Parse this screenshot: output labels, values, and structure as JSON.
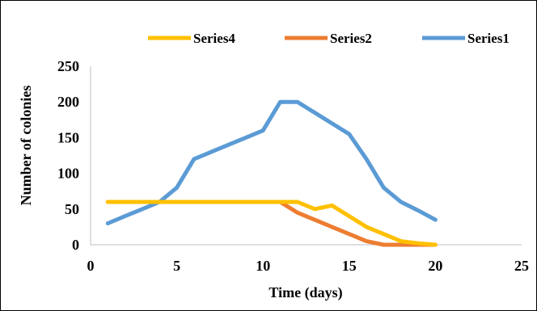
{
  "chart_data": {
    "type": "line",
    "title": "",
    "xlabel": "Time  (days)",
    "ylabel": "Number of colonies",
    "xlim": [
      0,
      25
    ],
    "ylim": [
      0,
      250
    ],
    "xticks": [
      "0",
      "5",
      "10",
      "15",
      "20",
      "25"
    ],
    "yticks": [
      "0",
      "50",
      "100",
      "150",
      "200",
      "250"
    ],
    "grid": false,
    "legend_position": "top",
    "legend_order": [
      "Series4",
      "Series2",
      "Series1"
    ],
    "series": [
      {
        "name": "Series4",
        "color": "#FFC000",
        "points": [
          [
            1,
            60
          ],
          [
            2,
            60
          ],
          [
            3,
            60
          ],
          [
            4,
            60
          ],
          [
            5,
            60
          ],
          [
            6,
            60
          ],
          [
            7,
            60
          ],
          [
            8,
            60
          ],
          [
            9,
            60
          ],
          [
            10,
            60
          ],
          [
            11,
            60
          ],
          [
            12,
            60
          ],
          [
            13,
            50
          ],
          [
            14,
            55
          ],
          [
            15,
            40
          ],
          [
            16,
            25
          ],
          [
            17,
            15
          ],
          [
            18,
            5
          ],
          [
            19,
            2
          ],
          [
            20,
            0
          ]
        ]
      },
      {
        "name": "Series2",
        "color": "#ED7D31",
        "points": [
          [
            1,
            60
          ],
          [
            2,
            60
          ],
          [
            3,
            60
          ],
          [
            4,
            60
          ],
          [
            5,
            60
          ],
          [
            6,
            60
          ],
          [
            7,
            60
          ],
          [
            8,
            60
          ],
          [
            9,
            60
          ],
          [
            10,
            60
          ],
          [
            11,
            60
          ],
          [
            12,
            45
          ],
          [
            13,
            35
          ],
          [
            14,
            25
          ],
          [
            15,
            15
          ],
          [
            16,
            5
          ],
          [
            17,
            0
          ],
          [
            18,
            0
          ],
          [
            19,
            0
          ],
          [
            20,
            0
          ]
        ]
      },
      {
        "name": "Series1",
        "color": "#5B9BD5",
        "points": [
          [
            1,
            30
          ],
          [
            2,
            40
          ],
          [
            3,
            50
          ],
          [
            4,
            60
          ],
          [
            5,
            80
          ],
          [
            6,
            120
          ],
          [
            7,
            130
          ],
          [
            8,
            140
          ],
          [
            9,
            150
          ],
          [
            10,
            160
          ],
          [
            11,
            200
          ],
          [
            12,
            200
          ],
          [
            13,
            185
          ],
          [
            14,
            170
          ],
          [
            15,
            155
          ],
          [
            16,
            120
          ],
          [
            17,
            80
          ],
          [
            18,
            60
          ],
          [
            19,
            48
          ],
          [
            20,
            35
          ]
        ]
      }
    ]
  }
}
